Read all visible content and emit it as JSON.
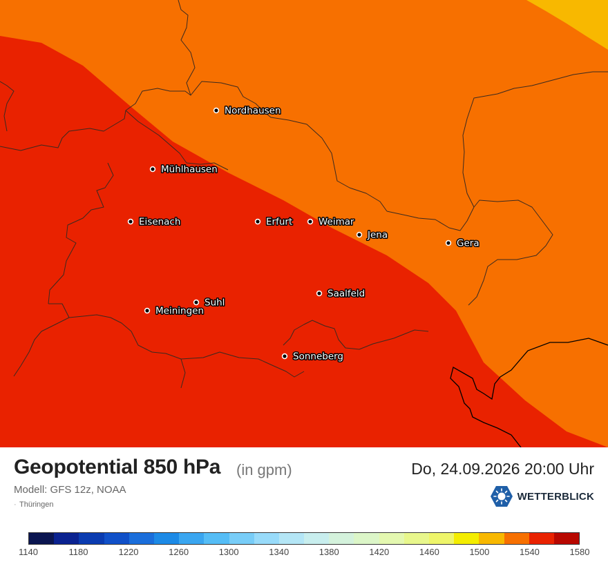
{
  "map": {
    "colors": {
      "band_1500_1520": "#f8b800",
      "band_1520_1540": "#f77000",
      "band_1540_1560": "#e92200",
      "borders": "#3a2a20",
      "state_border": "#000000"
    },
    "cities": [
      {
        "name": "Nordhausen",
        "label": "Nordhausen"
      },
      {
        "name": "Mühlhausen",
        "label": "Mühlhausen"
      },
      {
        "name": "Eisenach",
        "label": "Eisenach"
      },
      {
        "name": "Erfurt",
        "label": "Erfurt"
      },
      {
        "name": "Weimar",
        "label": "Weimar"
      },
      {
        "name": "Jena",
        "label": "Jena"
      },
      {
        "name": "Gera",
        "label": "Gera"
      },
      {
        "name": "Saalfeld",
        "label": "Saalfeld"
      },
      {
        "name": "Suhl",
        "label": "Suhl"
      },
      {
        "name": "Meiningen",
        "label": "Meiningen"
      },
      {
        "name": "Sonneberg",
        "label": "Sonneberg"
      }
    ]
  },
  "footer": {
    "title": "Geopotential 850 hPa",
    "unit": "(in gpm)",
    "model": "Modell: GFS 12z, NOAA",
    "region": "Thüringen",
    "datetime": "Do, 24.09.2026 20:00 Uhr",
    "brand": "WETTERBLICK",
    "brand_icon": "sun-logo-icon",
    "brand_color": "#1f5fa8"
  },
  "legend": {
    "colors": [
      "#0a1550",
      "#0a2290",
      "#0a3bb0",
      "#1050c8",
      "#1a6edb",
      "#1c8ae6",
      "#3aa6f0",
      "#55bdf6",
      "#78cdf8",
      "#98dbfa",
      "#b4e6f6",
      "#c8eeee",
      "#d4f2dc",
      "#dcf6c8",
      "#e4f8b0",
      "#e8f78c",
      "#eef56a",
      "#f4ed00",
      "#f8b800",
      "#f77000",
      "#e92200",
      "#b80800"
    ],
    "labels": [
      "1140",
      "1180",
      "1220",
      "1260",
      "1300",
      "1340",
      "1380",
      "1420",
      "1460",
      "1500",
      "1540",
      "1580"
    ]
  }
}
